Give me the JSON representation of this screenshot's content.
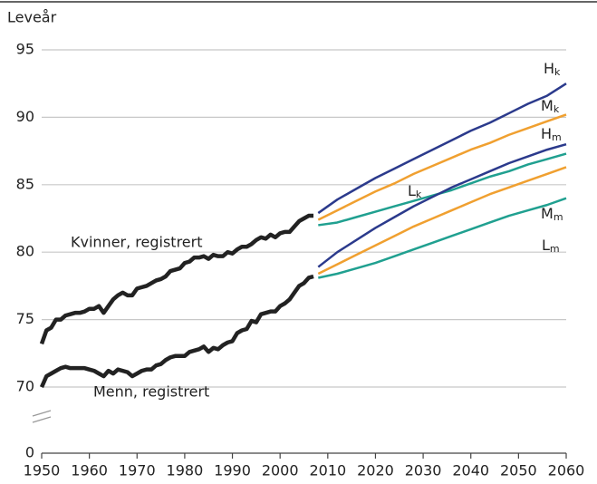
{
  "chart_data": {
    "type": "line",
    "y_label": "Leveår",
    "xlim": [
      1950,
      2060
    ],
    "xticks": [
      1950,
      1960,
      1970,
      1980,
      1990,
      2000,
      2010,
      2020,
      2030,
      2040,
      2050,
      2060
    ],
    "ylim": [
      0,
      95
    ],
    "yticks": [
      0,
      70,
      75,
      80,
      85,
      90,
      95
    ],
    "axis_break": [
      0,
      70
    ],
    "grid": true,
    "series": [
      {
        "name": "Kvinner, registrert",
        "color": "#222222",
        "x": [
          1950,
          1951,
          1952,
          1953,
          1954,
          1955,
          1956,
          1957,
          1958,
          1959,
          1960,
          1961,
          1962,
          1963,
          1964,
          1965,
          1966,
          1967,
          1968,
          1969,
          1970,
          1971,
          1972,
          1973,
          1974,
          1975,
          1976,
          1977,
          1978,
          1979,
          1980,
          1981,
          1982,
          1983,
          1984,
          1985,
          1986,
          1987,
          1988,
          1989,
          1990,
          1991,
          1992,
          1993,
          1994,
          1995,
          1996,
          1997,
          1998,
          1999,
          2000,
          2001,
          2002,
          2003,
          2004,
          2005,
          2006,
          2007
        ],
        "values": [
          73.2,
          74.2,
          74.4,
          75.0,
          75.0,
          75.3,
          75.4,
          75.5,
          75.5,
          75.6,
          75.8,
          75.8,
          76.0,
          75.5,
          76.0,
          76.5,
          76.8,
          77.0,
          76.8,
          76.8,
          77.3,
          77.4,
          77.5,
          77.7,
          77.9,
          78.0,
          78.2,
          78.6,
          78.7,
          78.8,
          79.2,
          79.3,
          79.6,
          79.6,
          79.7,
          79.5,
          79.8,
          79.7,
          79.7,
          80.0,
          79.9,
          80.2,
          80.4,
          80.4,
          80.6,
          80.9,
          81.1,
          81.0,
          81.3,
          81.1,
          81.4,
          81.5,
          81.5,
          81.9,
          82.3,
          82.5,
          82.7,
          82.7
        ]
      },
      {
        "name": "Menn, registrert",
        "color": "#222222",
        "x": [
          1950,
          1951,
          1952,
          1953,
          1954,
          1955,
          1956,
          1957,
          1958,
          1959,
          1960,
          1961,
          1962,
          1963,
          1964,
          1965,
          1966,
          1967,
          1968,
          1969,
          1970,
          1971,
          1972,
          1973,
          1974,
          1975,
          1976,
          1977,
          1978,
          1979,
          1980,
          1981,
          1982,
          1983,
          1984,
          1985,
          1986,
          1987,
          1988,
          1989,
          1990,
          1991,
          1992,
          1993,
          1994,
          1995,
          1996,
          1997,
          1998,
          1999,
          2000,
          2001,
          2002,
          2003,
          2004,
          2005,
          2006,
          2007
        ],
        "values": [
          69.9,
          70.8,
          71.0,
          71.2,
          71.4,
          71.5,
          71.4,
          71.4,
          71.4,
          71.4,
          71.3,
          71.2,
          71.0,
          70.8,
          71.2,
          71.0,
          71.3,
          71.2,
          71.1,
          70.8,
          71.0,
          71.2,
          71.3,
          71.3,
          71.6,
          71.7,
          72.0,
          72.2,
          72.3,
          72.3,
          72.3,
          72.6,
          72.7,
          72.8,
          73.0,
          72.6,
          72.9,
          72.8,
          73.1,
          73.3,
          73.4,
          74.0,
          74.2,
          74.3,
          74.9,
          74.8,
          75.4,
          75.5,
          75.6,
          75.6,
          76.0,
          76.2,
          76.5,
          77.0,
          77.5,
          77.7,
          78.1,
          78.2
        ]
      },
      {
        "name": "Hk",
        "color": "#2b3a8c",
        "x": [
          2008,
          2012,
          2016,
          2020,
          2024,
          2028,
          2032,
          2036,
          2040,
          2044,
          2048,
          2052,
          2056,
          2060
        ],
        "values": [
          82.9,
          83.9,
          84.7,
          85.5,
          86.2,
          86.9,
          87.6,
          88.3,
          89.0,
          89.6,
          90.3,
          91.0,
          91.6,
          92.5
        ]
      },
      {
        "name": "Mk",
        "color": "#f0a030",
        "x": [
          2008,
          2012,
          2016,
          2020,
          2024,
          2028,
          2032,
          2036,
          2040,
          2044,
          2048,
          2052,
          2056,
          2060
        ],
        "values": [
          82.4,
          83.1,
          83.8,
          84.5,
          85.1,
          85.8,
          86.4,
          87.0,
          87.6,
          88.1,
          88.7,
          89.2,
          89.7,
          90.2
        ]
      },
      {
        "name": "Lk",
        "color": "#20a090",
        "x": [
          2008,
          2012,
          2016,
          2020,
          2024,
          2028,
          2032,
          2036,
          2040,
          2044,
          2048,
          2052,
          2056,
          2060
        ],
        "values": [
          82.0,
          82.2,
          82.6,
          83.0,
          83.4,
          83.8,
          84.2,
          84.6,
          85.1,
          85.6,
          86.0,
          86.5,
          86.9,
          87.3
        ]
      },
      {
        "name": "Hm",
        "color": "#2b3a8c",
        "x": [
          2008,
          2012,
          2016,
          2020,
          2024,
          2028,
          2032,
          2036,
          2040,
          2044,
          2048,
          2052,
          2056,
          2060
        ],
        "values": [
          78.9,
          80.0,
          80.9,
          81.8,
          82.6,
          83.4,
          84.1,
          84.8,
          85.4,
          86.0,
          86.6,
          87.1,
          87.6,
          88.0
        ]
      },
      {
        "name": "Mm",
        "color": "#f0a030",
        "x": [
          2008,
          2012,
          2016,
          2020,
          2024,
          2028,
          2032,
          2036,
          2040,
          2044,
          2048,
          2052,
          2056,
          2060
        ],
        "values": [
          78.4,
          79.1,
          79.8,
          80.5,
          81.2,
          81.9,
          82.5,
          83.1,
          83.7,
          84.3,
          84.8,
          85.3,
          85.8,
          86.3
        ]
      },
      {
        "name": "Lm",
        "color": "#20a090",
        "x": [
          2008,
          2012,
          2016,
          2020,
          2024,
          2028,
          2032,
          2036,
          2040,
          2044,
          2048,
          2052,
          2056,
          2060
        ],
        "values": [
          78.1,
          78.4,
          78.8,
          79.2,
          79.7,
          80.2,
          80.7,
          81.2,
          81.7,
          82.2,
          82.7,
          83.1,
          83.5,
          84.0
        ]
      }
    ]
  }
}
